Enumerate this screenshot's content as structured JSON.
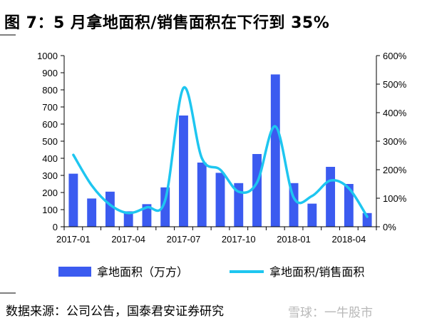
{
  "title": "图 7：5 月拿地面积/销售面积在下行到 35%",
  "source": "数据来源：公司公告，国泰君安证券研究",
  "watermark": "雪球：一牛股市",
  "colors": {
    "bar": "#3b5bf0",
    "line": "#1ec6f0",
    "axis": "#000000"
  },
  "chart_data": {
    "type": "bar",
    "categories": [
      "2017-01",
      "2017-02",
      "2017-03",
      "2017-04",
      "2017-05",
      "2017-06",
      "2017-07",
      "2017-08",
      "2017-09",
      "2017-10",
      "2017-11",
      "2017-12",
      "2018-01",
      "2018-02",
      "2018-03",
      "2018-04",
      "2018-05"
    ],
    "x_tick_labels": [
      "2017-01",
      "2017-04",
      "2017-07",
      "2017-10",
      "2018-01",
      "2018-04"
    ],
    "x_tick_indices": [
      0,
      3,
      6,
      9,
      12,
      15
    ],
    "series": [
      {
        "name": "拿地面积（万方）",
        "type": "bar",
        "axis": "left",
        "values": [
          310,
          165,
          205,
          90,
          132,
          230,
          650,
          375,
          315,
          255,
          425,
          890,
          255,
          135,
          350,
          250,
          80
        ]
      },
      {
        "name": "拿地面积/销售面积",
        "type": "line",
        "axis": "right",
        "values": [
          252,
          145,
          77,
          48,
          68,
          93,
          487,
          240,
          200,
          123,
          155,
          352,
          102,
          108,
          162,
          135,
          35
        ]
      }
    ],
    "ylim_left": [
      0,
      1000
    ],
    "yticks_left": [
      0,
      100,
      200,
      300,
      400,
      500,
      600,
      700,
      800,
      900,
      1000
    ],
    "ylim_right": [
      0,
      600
    ],
    "yticks_right": [
      "0%",
      "100%",
      "200%",
      "300%",
      "400%",
      "500%",
      "600%"
    ],
    "grid": false,
    "legend_position": "bottom"
  }
}
